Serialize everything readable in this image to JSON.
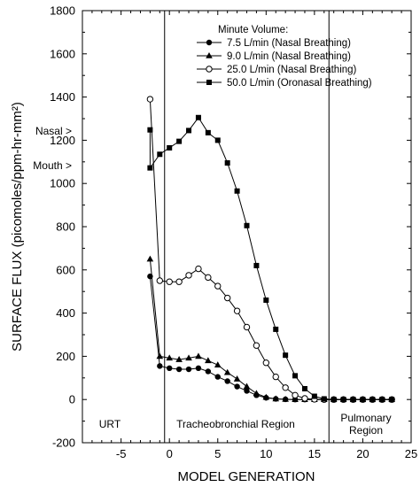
{
  "chart_data": {
    "type": "line",
    "title": "",
    "xlabel": "MODEL GENERATION",
    "ylabel": "SURFACE FLUX (picomoles/ppm-hr-mm²)",
    "xlim": [
      -9,
      25
    ],
    "ylim": [
      -200,
      1800
    ],
    "xticks": [
      -5,
      0,
      5,
      10,
      15,
      20,
      25
    ],
    "yticks": [
      -200,
      0,
      200,
      400,
      600,
      800,
      1000,
      1200,
      1400,
      1600,
      1800
    ],
    "grid": false,
    "legend_title": "Minute Volume:",
    "legend_position": "top-right",
    "series": [
      {
        "name": "7.5 L/min  (Nasal Breathing)",
        "marker": "filled-circle",
        "x": [
          -2,
          -1,
          0,
          1,
          2,
          3,
          4,
          5,
          6,
          7,
          8,
          9,
          10,
          11,
          12,
          13,
          14,
          15,
          16,
          17,
          18,
          19,
          20,
          21,
          22,
          23
        ],
        "y": [
          570,
          155,
          145,
          140,
          140,
          145,
          130,
          105,
          85,
          60,
          40,
          20,
          8,
          3,
          1,
          0,
          0,
          0,
          0,
          0,
          0,
          0,
          0,
          0,
          0,
          0
        ]
      },
      {
        "name": "9.0 L/min  (Nasal Breathing)",
        "marker": "filled-triangle",
        "x": [
          -2,
          -1,
          0,
          1,
          2,
          3,
          4,
          5,
          6,
          7,
          8,
          9,
          10,
          11,
          12,
          13,
          14,
          15,
          16,
          17,
          18,
          19,
          20,
          21,
          22,
          23
        ],
        "y": [
          650,
          200,
          192,
          185,
          192,
          200,
          180,
          160,
          125,
          95,
          60,
          28,
          10,
          3,
          1,
          0,
          0,
          0,
          0,
          0,
          0,
          0,
          0,
          0,
          0,
          0
        ]
      },
      {
        "name": "25.0 L/min  (Nasal Breathing)",
        "marker": "open-circle",
        "x": [
          -2,
          -1,
          0,
          1,
          2,
          3,
          4,
          5,
          6,
          7,
          8,
          9,
          10,
          11,
          12,
          13,
          14,
          15,
          16,
          17,
          18,
          19,
          20,
          21,
          22,
          23
        ],
        "y": [
          1390,
          550,
          545,
          545,
          575,
          605,
          565,
          525,
          470,
          410,
          335,
          250,
          170,
          105,
          55,
          20,
          5,
          1,
          0,
          0,
          0,
          0,
          0,
          0,
          0,
          0
        ]
      },
      {
        "name": "50.0 L/min  (Oronasal Breathing)",
        "marker": "filled-square",
        "x": [
          -2,
          -2,
          -1,
          0,
          1,
          2,
          3,
          4,
          5,
          6,
          7,
          8,
          9,
          10,
          11,
          12,
          13,
          14,
          15,
          16,
          17,
          18,
          19,
          20,
          21,
          22,
          23
        ],
        "y": [
          1248,
          1072,
          1135,
          1165,
          1195,
          1245,
          1305,
          1235,
          1200,
          1095,
          965,
          805,
          620,
          460,
          325,
          205,
          110,
          50,
          15,
          3,
          0,
          0,
          0,
          0,
          0,
          0,
          0
        ]
      }
    ],
    "annotations": [
      {
        "text": "Nasal >",
        "x": -2,
        "y": 1248
      },
      {
        "text": "Mouth >",
        "x": -2,
        "y": 1072
      }
    ],
    "regions": [
      {
        "label": "URT",
        "x_start": -9,
        "x_end": -0.5
      },
      {
        "label": "Tracheobronchial Region",
        "x_start": -0.5,
        "x_end": 16.5
      },
      {
        "label_line1": "Pulmonary",
        "label_line2": "Region",
        "x_start": 16.5,
        "x_end": 25
      }
    ],
    "region_boundaries": [
      -0.5,
      16.5
    ]
  }
}
